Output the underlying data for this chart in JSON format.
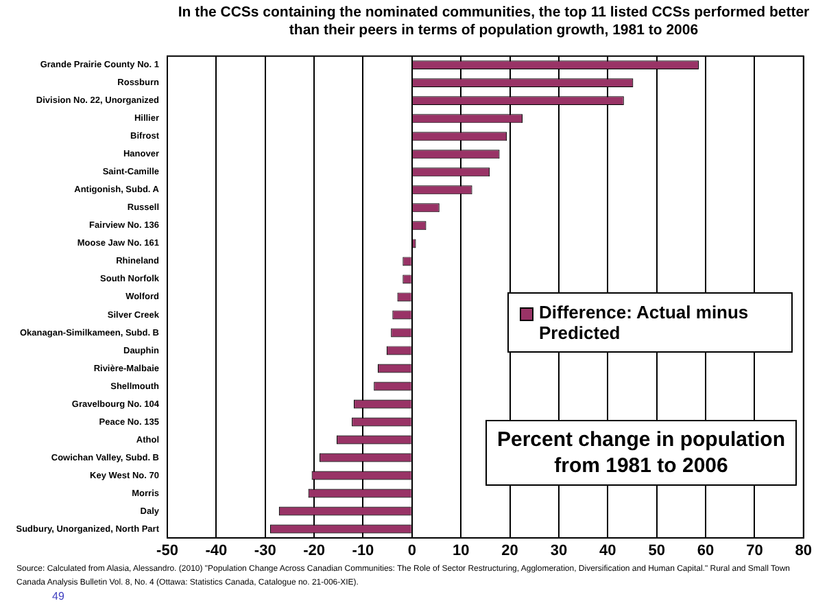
{
  "chart_data": {
    "type": "bar",
    "orientation": "horizontal",
    "title": "In the CCSs containing the nominated communities, the top 11 listed CCSs performed better than their peers in terms of population growth, 1981 to 2006",
    "categories": [
      "Grande Prairie County No. 1",
      "Rossburn",
      "Division No. 22, Unorganized",
      "Hillier",
      "Bifrost",
      "Hanover",
      "Saint-Camille",
      "Antigonish, Subd. A",
      "Russell",
      "Fairview No. 136",
      "Moose Jaw No. 161",
      "Rhineland",
      "South Norfolk",
      "Wolford",
      "Silver Creek",
      "Okanagan-Similkameen, Subd. B",
      "Dauphin",
      "Rivière-Malbaie",
      "Shellmouth",
      "Gravelbourg No. 104",
      "Peace No. 135",
      "Athol",
      "Cowichan Valley, Subd. B",
      "Key West No. 70",
      "Morris",
      "Daly",
      "Sudbury, Unorganized, North Part"
    ],
    "series": [
      {
        "name": "Difference: Actual minus Predicted",
        "color": "#993366",
        "values": [
          58.6,
          45.2,
          43.3,
          22.6,
          19.4,
          17.9,
          15.9,
          12.3,
          5.6,
          2.9,
          0.8,
          -1.9,
          -1.9,
          -3.0,
          -4.0,
          -4.3,
          -5.2,
          -7.0,
          -7.8,
          -11.9,
          -12.3,
          -15.4,
          -18.9,
          -20.5,
          -21.2,
          -27.2,
          -29.0
        ]
      }
    ],
    "xlim": [
      -50,
      80
    ],
    "xticks": [
      -50,
      -40,
      -30,
      -20,
      -10,
      0,
      10,
      20,
      30,
      40,
      50,
      60,
      70,
      80
    ],
    "grid": "x",
    "legend": "right",
    "annotations": [
      "Percent change in population from 1981 to 2006",
      "Source: Calculated from Alasia, Alessandro. (2010) \"Population Change Across Canadian Communities: The Role of Sector Restructuring, Agglomeration, Diversification and Human Capital.\" Rural and Small Town Canada Analysis Bulletin Vol. 8, No. 4 (Ottawa: Statistics Canada, Catalogue no. 21-006-XIE).",
      "49"
    ]
  }
}
